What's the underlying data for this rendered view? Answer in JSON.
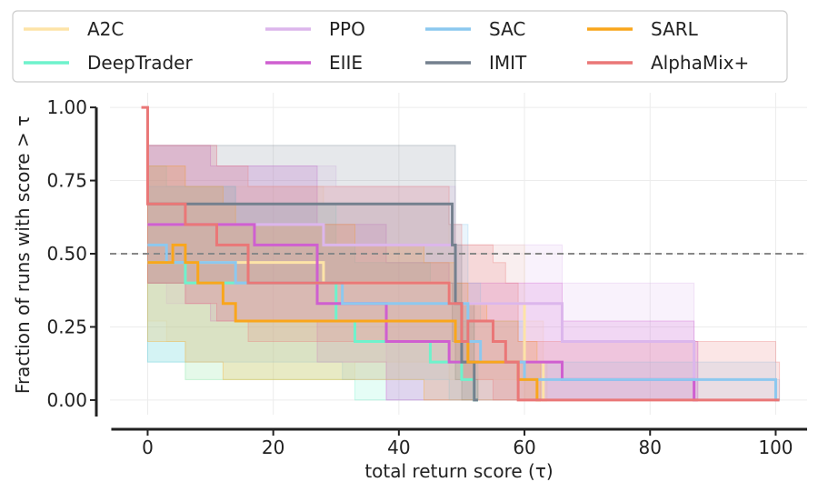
{
  "chart_data": {
    "type": "line",
    "title": "",
    "xlabel": "total return score (τ)",
    "ylabel": "Fraction of runs with score > τ",
    "xlim": [
      -6,
      105
    ],
    "ylim": [
      -0.05,
      1.05
    ],
    "x_ticks": [
      0,
      20,
      40,
      60,
      80,
      100
    ],
    "y_ticks": [
      0.0,
      0.25,
      0.5,
      0.75,
      1.0
    ],
    "x_tick_labels": [
      "0",
      "20",
      "40",
      "60",
      "80",
      "100"
    ],
    "y_tick_labels": [
      "0.00",
      "0.25",
      "0.50",
      "0.75",
      "1.00"
    ],
    "reference_line": 0.5,
    "grid": true,
    "legend_position": "top",
    "series": [
      {
        "name": "A2C",
        "color": "#fde3a7",
        "opacity": 1,
        "x": [
          0,
          3,
          6,
          19,
          28,
          33,
          48,
          60,
          63
        ],
        "y": [
          0.47,
          0.47,
          0.47,
          0.47,
          0.4,
          0.4,
          0.33,
          0.13,
          0.0
        ],
        "band_low": [
          0.27,
          0.2,
          0.07,
          0.07,
          0.07,
          0.13,
          0.07,
          0.0,
          0.0
        ],
        "band_high": [
          0.8,
          0.8,
          0.73,
          0.73,
          0.67,
          0.67,
          0.53,
          0.27,
          0.13
        ]
      },
      {
        "name": "DeepTrader",
        "color": "#6ef2cc",
        "opacity": 1,
        "x": [
          0,
          3,
          6,
          14,
          30,
          33,
          45,
          50,
          52
        ],
        "y": [
          0.47,
          0.47,
          0.4,
          0.4,
          0.27,
          0.2,
          0.13,
          0.07,
          0.0
        ],
        "band_low": [
          0.13,
          0.13,
          0.07,
          0.07,
          0.07,
          0.0,
          0.0,
          0.0,
          0.0
        ],
        "band_high": [
          0.8,
          0.73,
          0.73,
          0.67,
          0.53,
          0.47,
          0.4,
          0.27,
          0.13
        ]
      },
      {
        "name": "PPO",
        "color": "#dcb6ec",
        "opacity": 1,
        "x": [
          0,
          3,
          6,
          11,
          28,
          30,
          38,
          49,
          66,
          87
        ],
        "y": [
          0.6,
          0.6,
          0.6,
          0.6,
          0.53,
          0.53,
          0.53,
          0.33,
          0.2,
          0.0
        ],
        "band_low": [
          0.4,
          0.33,
          0.33,
          0.27,
          0.27,
          0.27,
          0.0,
          0.0,
          0.0,
          0.0
        ],
        "band_high": [
          0.87,
          0.87,
          0.87,
          0.8,
          0.8,
          0.73,
          0.73,
          0.53,
          0.4,
          0.2
        ]
      },
      {
        "name": "EIIE",
        "color": "#cf5fd0",
        "opacity": 1,
        "x": [
          0,
          6,
          10,
          17,
          27,
          38,
          48,
          66,
          87
        ],
        "y": [
          0.6,
          0.6,
          0.6,
          0.53,
          0.33,
          0.2,
          0.13,
          0.07,
          0.0
        ],
        "band_low": [
          0.4,
          0.33,
          0.27,
          0.27,
          0.13,
          0.0,
          0.0,
          0.0,
          0.0
        ],
        "band_high": [
          0.87,
          0.87,
          0.8,
          0.8,
          0.6,
          0.47,
          0.4,
          0.27,
          0.2
        ]
      },
      {
        "name": "SAC",
        "color": "#8cc8ef",
        "opacity": 1,
        "x": [
          0,
          3,
          6,
          14,
          27,
          31,
          48,
          51,
          53,
          60,
          100
        ],
        "y": [
          0.53,
          0.47,
          0.47,
          0.4,
          0.4,
          0.33,
          0.33,
          0.2,
          0.13,
          0.07,
          0.0
        ],
        "band_low": [
          0.13,
          0.13,
          0.13,
          0.13,
          0.13,
          0.07,
          0.0,
          0.0,
          0.0,
          0.0,
          0.0
        ],
        "band_high": [
          0.73,
          0.73,
          0.73,
          0.67,
          0.67,
          0.67,
          0.6,
          0.4,
          0.27,
          0.13,
          0.07
        ]
      },
      {
        "name": "IMIT",
        "color": "#74808e",
        "opacity": 1,
        "x": [
          0,
          2,
          48.5,
          49,
          50,
          52
        ],
        "y": [
          0.67,
          0.67,
          0.53,
          0.33,
          0.13,
          0.0
        ],
        "band_low": [
          0.4,
          0.4,
          0.2,
          0.07,
          0.0,
          0.0
        ],
        "band_high": [
          0.87,
          0.87,
          0.87,
          0.53,
          0.33,
          0.07
        ]
      },
      {
        "name": "SARL",
        "color": "#f9a61c",
        "opacity": 1,
        "x": [
          0,
          4,
          6,
          8,
          12,
          14,
          33,
          44,
          47,
          49,
          51,
          54,
          59,
          62
        ],
        "y": [
          0.47,
          0.53,
          0.47,
          0.4,
          0.33,
          0.27,
          0.27,
          0.27,
          0.27,
          0.2,
          0.13,
          0.13,
          0.07,
          0.0
        ],
        "band_low": [
          0.2,
          0.2,
          0.13,
          0.13,
          0.07,
          0.07,
          0.07,
          0.0,
          0.0,
          0.0,
          0.0,
          0.0,
          0.0,
          0.0
        ],
        "band_high": [
          0.8,
          0.8,
          0.73,
          0.73,
          0.67,
          0.6,
          0.53,
          0.47,
          0.47,
          0.4,
          0.33,
          0.27,
          0.2,
          0.13
        ]
      },
      {
        "name": "AlphaMix+",
        "color": "#ea7777",
        "opacity": 1,
        "x": [
          -1,
          0,
          6,
          11,
          16,
          48,
          50,
          51,
          55,
          57,
          59,
          100
        ],
        "y": [
          1.0,
          0.67,
          0.6,
          0.53,
          0.4,
          0.33,
          0.2,
          0.27,
          0.2,
          0.13,
          0.0,
          0.0
        ],
        "band_low": [
          1.0,
          0.4,
          0.33,
          0.27,
          0.2,
          0.13,
          0.07,
          0.07,
          0.0,
          0.0,
          0.0,
          0.0
        ],
        "band_high": [
          1.0,
          0.87,
          0.87,
          0.8,
          0.73,
          0.6,
          0.53,
          0.53,
          0.47,
          0.4,
          0.2,
          0.13
        ]
      }
    ]
  }
}
